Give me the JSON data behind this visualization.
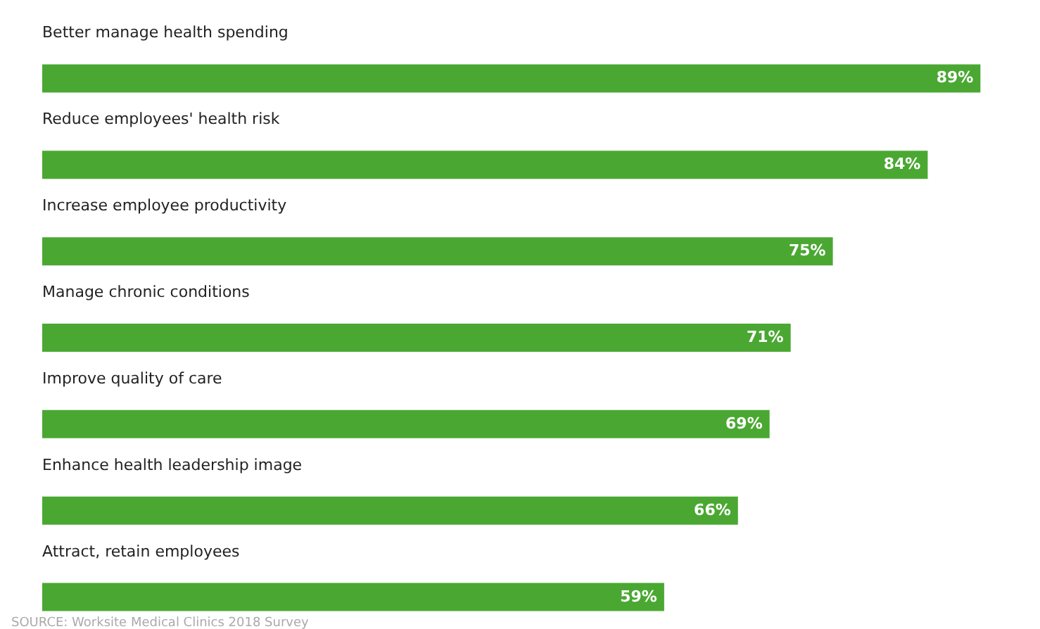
{
  "chart_data": {
    "type": "bar",
    "orientation": "horizontal",
    "categories": [
      "Better manage health spending",
      "Reduce employees' health risk",
      "Increase employee productivity",
      "Manage chronic conditions",
      "Improve quality of care",
      "Enhance health leadership image",
      "Attract, retain employees"
    ],
    "values": [
      89,
      84,
      75,
      71,
      69,
      66,
      59
    ],
    "value_labels": [
      "89%",
      "84%",
      "75%",
      "71%",
      "69%",
      "66%",
      "59%"
    ],
    "color": "#4aa832",
    "annotations": [
      "SOURCE: Worksite Medical Clinics 2018 Survey"
    ]
  }
}
